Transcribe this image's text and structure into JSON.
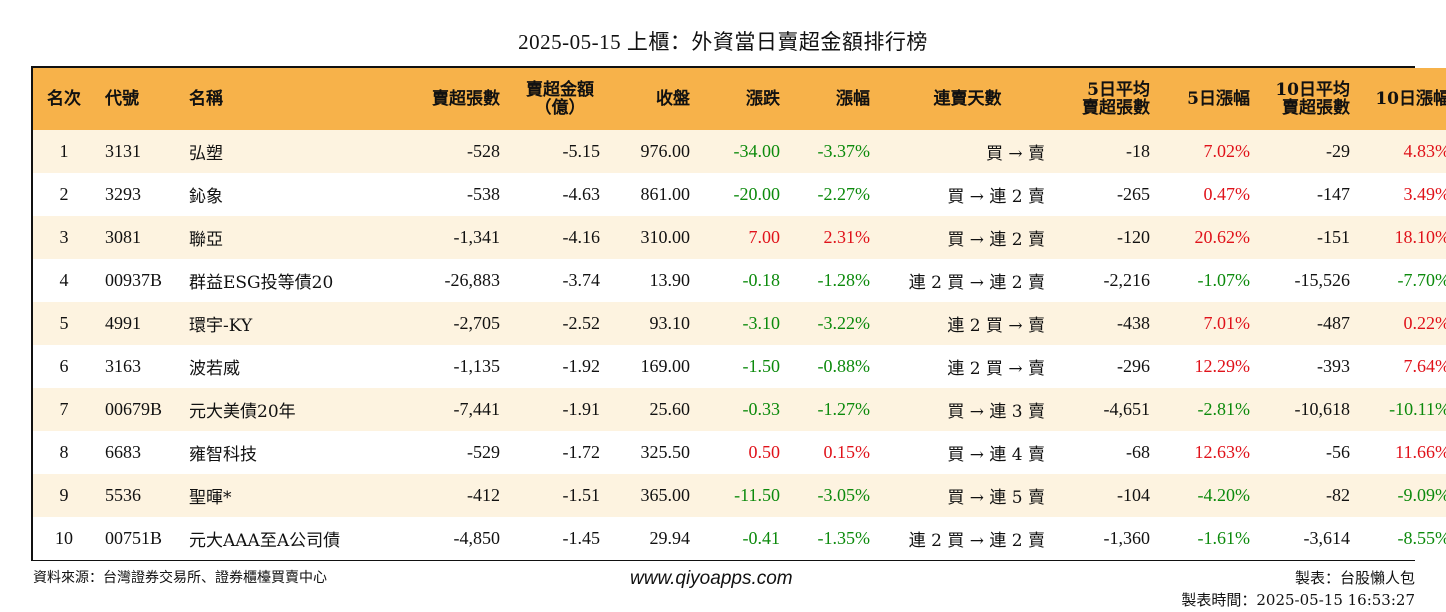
{
  "title": "2025-05-15 上櫃：外資當日賣超金額排行榜",
  "colors": {
    "header_bg": "#f7b24a",
    "row_alt": "#fdf3e0",
    "positive": "#e0121a",
    "negative": "#0c8a0c"
  },
  "headers": {
    "rank": "名次",
    "code": "代號",
    "name": "名稱",
    "net_sell_lots": "賣超張數",
    "net_sell_amount_1": "賣超金額",
    "net_sell_amount_2": "（億）",
    "close": "收盤",
    "change": "漲跌",
    "change_pct": "漲幅",
    "streak": "連賣天數",
    "avg5_1": "5日平均",
    "avg5_2": "賣超張數",
    "chg5": "5日漲幅",
    "avg10_1": "10日平均",
    "avg10_2": "賣超張數",
    "chg10": "10日漲幅"
  },
  "rows": [
    {
      "rank": "1",
      "code": "3131",
      "name": "弘塑",
      "lots": "-528",
      "amount": "-5.15",
      "close": "976.00",
      "change": "-34.00",
      "change_pct": "-3.37%",
      "streak": "買 → 賣",
      "avg5": "-18",
      "chg5": "7.02%",
      "avg10": "-29",
      "chg10": "4.83%"
    },
    {
      "rank": "2",
      "code": "3293",
      "name": "鈊象",
      "lots": "-538",
      "amount": "-4.63",
      "close": "861.00",
      "change": "-20.00",
      "change_pct": "-2.27%",
      "streak": "買 → 連 2 賣",
      "avg5": "-265",
      "chg5": "0.47%",
      "avg10": "-147",
      "chg10": "3.49%"
    },
    {
      "rank": "3",
      "code": "3081",
      "name": "聯亞",
      "lots": "-1,341",
      "amount": "-4.16",
      "close": "310.00",
      "change": "7.00",
      "change_pct": "2.31%",
      "streak": "買 → 連 2 賣",
      "avg5": "-120",
      "chg5": "20.62%",
      "avg10": "-151",
      "chg10": "18.10%"
    },
    {
      "rank": "4",
      "code": "00937B",
      "name": "群益ESG投等債20",
      "lots": "-26,883",
      "amount": "-3.74",
      "close": "13.90",
      "change": "-0.18",
      "change_pct": "-1.28%",
      "streak": "連 2 買 → 連 2 賣",
      "avg5": "-2,216",
      "chg5": "-1.07%",
      "avg10": "-15,526",
      "chg10": "-7.70%"
    },
    {
      "rank": "5",
      "code": "4991",
      "name": "環宇-KY",
      "lots": "-2,705",
      "amount": "-2.52",
      "close": "93.10",
      "change": "-3.10",
      "change_pct": "-3.22%",
      "streak": "連 2 買 → 賣",
      "avg5": "-438",
      "chg5": "7.01%",
      "avg10": "-487",
      "chg10": "0.22%"
    },
    {
      "rank": "6",
      "code": "3163",
      "name": "波若威",
      "lots": "-1,135",
      "amount": "-1.92",
      "close": "169.00",
      "change": "-1.50",
      "change_pct": "-0.88%",
      "streak": "連 2 買 → 賣",
      "avg5": "-296",
      "chg5": "12.29%",
      "avg10": "-393",
      "chg10": "7.64%"
    },
    {
      "rank": "7",
      "code": "00679B",
      "name": "元大美債20年",
      "lots": "-7,441",
      "amount": "-1.91",
      "close": "25.60",
      "change": "-0.33",
      "change_pct": "-1.27%",
      "streak": "買 → 連 3 賣",
      "avg5": "-4,651",
      "chg5": "-2.81%",
      "avg10": "-10,618",
      "chg10": "-10.11%"
    },
    {
      "rank": "8",
      "code": "6683",
      "name": "雍智科技",
      "lots": "-529",
      "amount": "-1.72",
      "close": "325.50",
      "change": "0.50",
      "change_pct": "0.15%",
      "streak": "買 → 連 4 賣",
      "avg5": "-68",
      "chg5": "12.63%",
      "avg10": "-56",
      "chg10": "11.66%"
    },
    {
      "rank": "9",
      "code": "5536",
      "name": "聖暉*",
      "lots": "-412",
      "amount": "-1.51",
      "close": "365.00",
      "change": "-11.50",
      "change_pct": "-3.05%",
      "streak": "買 → 連 5 賣",
      "avg5": "-104",
      "chg5": "-4.20%",
      "avg10": "-82",
      "chg10": "-9.09%"
    },
    {
      "rank": "10",
      "code": "00751B",
      "name": "元大AAA至A公司債",
      "lots": "-4,850",
      "amount": "-1.45",
      "close": "29.94",
      "change": "-0.41",
      "change_pct": "-1.35%",
      "streak": "連 2 買 → 連 2 賣",
      "avg5": "-1,360",
      "chg5": "-1.61%",
      "avg10": "-3,614",
      "chg10": "-8.55%"
    }
  ],
  "footer": {
    "source": "資料來源：台灣證券交易所、證券櫃檯買賣中心",
    "website": "www.qiyoapps.com",
    "author": "製表：台股懶人包",
    "made_time": "製表時間：2025-05-15 16:53:27"
  }
}
